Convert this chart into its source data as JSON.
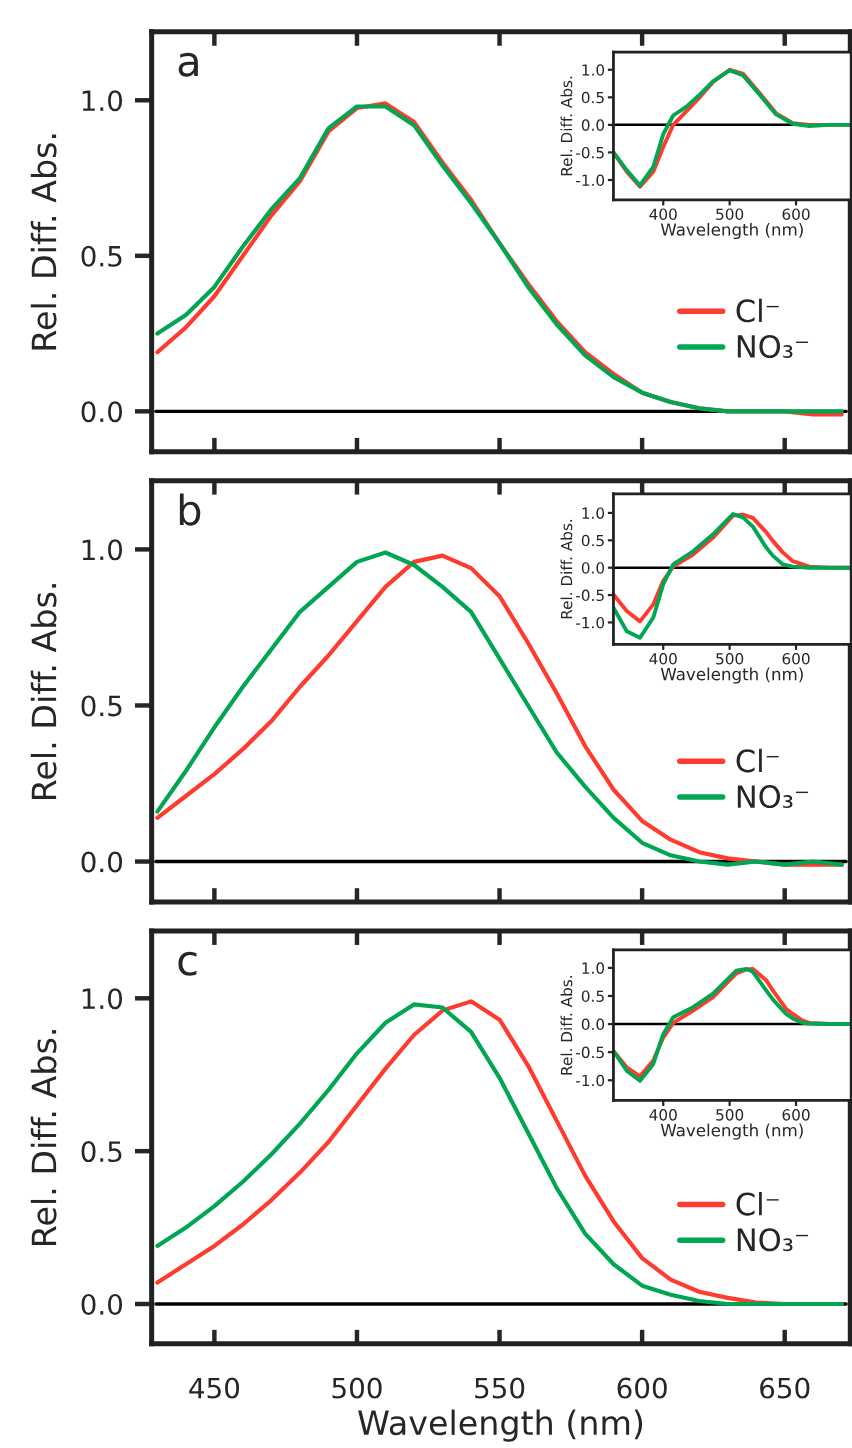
{
  "chart_data": [
    {
      "type": "line",
      "xlabel": "Wavelength (nm)",
      "ylabel": "Rel. Diff. Abs.",
      "x": [
        325,
        345,
        365,
        385,
        400,
        415,
        435,
        455,
        475,
        500,
        520,
        545,
        570,
        595,
        620,
        650,
        680
      ],
      "xlim": [
        325,
        683
      ],
      "ylim": [
        -1.36,
        1.32
      ],
      "xticks": [
        400,
        500,
        600
      ],
      "yticks": [
        {
          "value": -1,
          "label": "-1.0"
        },
        {
          "value": -0.5,
          "label": "-0.5"
        },
        {
          "value": 0,
          "label": "0.0"
        },
        {
          "value": 0.5,
          "label": "0.5"
        },
        {
          "value": 1,
          "label": "1.0"
        }
      ],
      "ref_lines": [
        {
          "axis": "y",
          "value": 0,
          "color": "#000000"
        }
      ],
      "series": [
        {
          "color": "#ff3b30",
          "values": [
            -0.5,
            -0.85,
            -1.12,
            -0.85,
            -0.4,
            0.0,
            0.25,
            0.5,
            0.78,
            1.0,
            0.93,
            0.58,
            0.21,
            0.03,
            0.0,
            0.0,
            0.0
          ]
        },
        {
          "color": "#00a651",
          "values": [
            -0.5,
            -0.82,
            -1.1,
            -0.76,
            -0.17,
            0.17,
            0.33,
            0.55,
            0.79,
            0.99,
            0.9,
            0.55,
            0.19,
            0.02,
            -0.02,
            0.0,
            0.0
          ]
        }
      ]
    },
    {
      "type": "line",
      "xlabel": null,
      "ylabel": "Rel. Diff. Abs.",
      "annotations": [
        "a"
      ],
      "x": [
        430,
        440,
        450,
        460,
        470,
        480,
        490,
        500,
        510,
        520,
        530,
        540,
        550,
        560,
        570,
        580,
        590,
        600,
        610,
        620,
        630,
        640,
        650,
        660,
        670
      ],
      "xlim": [
        428,
        673
      ],
      "ylim": [
        -0.13,
        1.22
      ],
      "xticks": [
        450,
        500,
        550,
        600,
        650
      ],
      "yticks": [
        {
          "value": 0,
          "label": "0.0"
        },
        {
          "value": 0.5,
          "label": "0.5"
        },
        {
          "value": 1,
          "label": "1.0"
        }
      ],
      "tick_labels": "y",
      "legend": "bottom right",
      "ref_lines": [
        {
          "axis": "y",
          "value": 0,
          "color": "#000000"
        }
      ],
      "series": [
        {
          "name": "Cl⁻",
          "color": "#ff3b30",
          "values": [
            0.19,
            0.27,
            0.37,
            0.5,
            0.63,
            0.74,
            0.9,
            0.975,
            0.99,
            0.93,
            0.8,
            0.68,
            0.54,
            0.41,
            0.29,
            0.19,
            0.12,
            0.06,
            0.03,
            0.01,
            0.0,
            0.0,
            0.0,
            -0.01,
            -0.01
          ]
        },
        {
          "name": "NO₃⁻",
          "color": "#00a651",
          "values": [
            0.25,
            0.31,
            0.4,
            0.53,
            0.65,
            0.75,
            0.91,
            0.98,
            0.98,
            0.92,
            0.79,
            0.67,
            0.54,
            0.4,
            0.28,
            0.18,
            0.11,
            0.06,
            0.03,
            0.01,
            0.0,
            0.0,
            0.0,
            0.0,
            0.0
          ]
        }
      ]
    },
    {
      "type": "line",
      "xlabel": "Wavelength (nm)",
      "ylabel": "Rel. Diff. Abs.",
      "x": [
        325,
        345,
        365,
        385,
        400,
        415,
        445,
        475,
        505,
        520,
        535,
        555,
        565,
        580,
        595,
        620,
        650,
        680
      ],
      "xlim": [
        325,
        683
      ],
      "ylim": [
        -1.4,
        1.35
      ],
      "xticks": [
        400,
        500,
        600
      ],
      "yticks": [
        {
          "value": -1,
          "label": "-1.0"
        },
        {
          "value": -0.5,
          "label": "-0.5"
        },
        {
          "value": 0,
          "label": "0.0"
        },
        {
          "value": 0.5,
          "label": "0.5"
        },
        {
          "value": 1,
          "label": "1.0"
        }
      ],
      "ref_lines": [
        {
          "axis": "y",
          "value": 0,
          "color": "#000000"
        }
      ],
      "series": [
        {
          "color": "#ff3b30",
          "values": [
            -0.49,
            -0.79,
            -0.98,
            -0.67,
            -0.24,
            0.02,
            0.24,
            0.55,
            0.95,
            0.97,
            0.91,
            0.65,
            0.49,
            0.28,
            0.12,
            0.02,
            0.0,
            0.0
          ]
        },
        {
          "color": "#00a651",
          "values": [
            -0.73,
            -1.16,
            -1.28,
            -0.91,
            -0.3,
            0.06,
            0.3,
            0.61,
            0.98,
            0.92,
            0.75,
            0.37,
            0.22,
            0.06,
            0.02,
            0.0,
            0.0,
            0.0
          ]
        }
      ]
    },
    {
      "type": "line",
      "xlabel": null,
      "ylabel": "Rel. Diff. Abs.",
      "annotations": [
        "b"
      ],
      "x": [
        430,
        440,
        450,
        460,
        470,
        480,
        490,
        500,
        510,
        520,
        530,
        540,
        550,
        560,
        570,
        580,
        590,
        600,
        610,
        620,
        630,
        640,
        650,
        660,
        670
      ],
      "xlim": [
        428,
        673
      ],
      "ylim": [
        -0.13,
        1.22
      ],
      "xticks": [
        450,
        500,
        550,
        600,
        650
      ],
      "yticks": [
        {
          "value": 0,
          "label": "0.0"
        },
        {
          "value": 0.5,
          "label": "0.5"
        },
        {
          "value": 1,
          "label": "1.0"
        }
      ],
      "tick_labels": "y",
      "legend": "bottom right",
      "ref_lines": [
        {
          "axis": "y",
          "value": 0,
          "color": "#000000"
        }
      ],
      "series": [
        {
          "name": "Cl⁻",
          "color": "#ff3b30",
          "values": [
            0.14,
            0.21,
            0.28,
            0.36,
            0.45,
            0.56,
            0.66,
            0.77,
            0.88,
            0.96,
            0.98,
            0.94,
            0.85,
            0.7,
            0.54,
            0.37,
            0.23,
            0.13,
            0.07,
            0.03,
            0.01,
            0.0,
            -0.01,
            -0.01,
            -0.01
          ]
        },
        {
          "name": "NO₃⁻",
          "color": "#00a651",
          "values": [
            0.16,
            0.29,
            0.43,
            0.56,
            0.68,
            0.8,
            0.88,
            0.96,
            0.99,
            0.95,
            0.88,
            0.8,
            0.65,
            0.5,
            0.35,
            0.24,
            0.14,
            0.06,
            0.02,
            0.0,
            -0.01,
            0.0,
            -0.01,
            0.0,
            -0.01
          ]
        }
      ]
    },
    {
      "type": "line",
      "xlabel": "Wavelength (nm)",
      "ylabel": "Rel. Diff. Abs.",
      "x": [
        325,
        345,
        365,
        385,
        400,
        415,
        445,
        475,
        510,
        525,
        535,
        555,
        565,
        585,
        595,
        610,
        620,
        650,
        680
      ],
      "xlim": [
        325,
        683
      ],
      "ylim": [
        -1.36,
        1.32
      ],
      "xticks": [
        400,
        500,
        600
      ],
      "yticks": [
        {
          "value": -1,
          "label": "-1.0"
        },
        {
          "value": -0.5,
          "label": "-0.5"
        },
        {
          "value": 0,
          "label": "0.0"
        },
        {
          "value": 0.5,
          "label": "0.5"
        },
        {
          "value": 1,
          "label": "1.0"
        }
      ],
      "ref_lines": [
        {
          "axis": "y",
          "value": 0,
          "color": "#000000"
        }
      ],
      "series": [
        {
          "color": "#ff3b30",
          "values": [
            -0.48,
            -0.77,
            -0.93,
            -0.65,
            -0.24,
            0.02,
            0.24,
            0.48,
            0.9,
            0.97,
            0.98,
            0.78,
            0.6,
            0.27,
            0.18,
            0.06,
            0.02,
            0.0,
            0.0
          ]
        },
        {
          "color": "#00a651",
          "values": [
            -0.48,
            -0.83,
            -1.01,
            -0.71,
            -0.18,
            0.12,
            0.3,
            0.54,
            0.95,
            0.98,
            0.93,
            0.6,
            0.44,
            0.18,
            0.1,
            0.02,
            0.01,
            0.0,
            0.0
          ]
        }
      ]
    },
    {
      "type": "line",
      "xlabel": "Wavelength (nm)",
      "ylabel": "Rel. Diff. Abs.",
      "annotations": [
        "c"
      ],
      "x": [
        430,
        440,
        450,
        460,
        470,
        480,
        490,
        500,
        510,
        520,
        530,
        540,
        550,
        560,
        570,
        580,
        590,
        600,
        610,
        620,
        630,
        640,
        650,
        660,
        670
      ],
      "xlim": [
        428,
        673
      ],
      "ylim": [
        -0.13,
        1.22
      ],
      "xticks": [
        450,
        500,
        550,
        600,
        650
      ],
      "yticks": [
        {
          "value": 0,
          "label": "0.0"
        },
        {
          "value": 0.5,
          "label": "0.5"
        },
        {
          "value": 1,
          "label": "1.0"
        }
      ],
      "legend": "bottom right",
      "ref_lines": [
        {
          "axis": "y",
          "value": 0,
          "color": "#000000"
        }
      ],
      "series": [
        {
          "name": "Cl⁻",
          "color": "#ff3b30",
          "values": [
            0.07,
            0.13,
            0.19,
            0.26,
            0.34,
            0.43,
            0.53,
            0.65,
            0.77,
            0.88,
            0.96,
            0.99,
            0.93,
            0.78,
            0.6,
            0.42,
            0.27,
            0.15,
            0.08,
            0.04,
            0.02,
            0.005,
            0.0,
            0.0,
            0.0
          ]
        },
        {
          "name": "NO₃⁻",
          "color": "#00a651",
          "values": [
            0.19,
            0.25,
            0.32,
            0.4,
            0.49,
            0.59,
            0.7,
            0.82,
            0.92,
            0.98,
            0.97,
            0.89,
            0.74,
            0.56,
            0.38,
            0.23,
            0.13,
            0.06,
            0.03,
            0.01,
            0.0,
            0.0,
            0.0,
            0.0,
            0.0
          ]
        }
      ]
    }
  ]
}
